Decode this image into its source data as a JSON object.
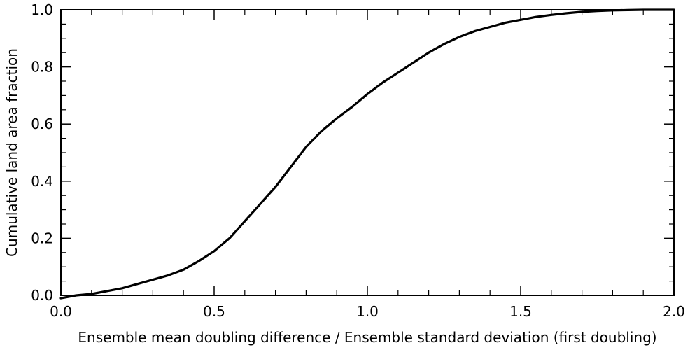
{
  "chart_data": {
    "type": "line",
    "title": "",
    "xlabel": "Ensemble mean doubling difference / Ensemble standard deviation (first doubling)",
    "ylabel": "Cumulative land area fraction",
    "xlim": [
      0.0,
      2.0
    ],
    "ylim": [
      0.0,
      1.0
    ],
    "grid": false,
    "x_ticks": [
      "0.0",
      "0.5",
      "1.0",
      "1.5",
      "2.0"
    ],
    "y_ticks": [
      "0.0",
      "0.2",
      "0.4",
      "0.6",
      "0.8",
      "1.0"
    ],
    "series": [
      {
        "x": [
          0.0,
          0.05,
          0.1,
          0.15,
          0.2,
          0.25,
          0.3,
          0.35,
          0.4,
          0.45,
          0.5,
          0.55,
          0.6,
          0.65,
          0.7,
          0.75,
          0.8,
          0.85,
          0.9,
          0.95,
          1.0,
          1.05,
          1.1,
          1.15,
          1.2,
          1.25,
          1.3,
          1.35,
          1.4,
          1.45,
          1.5,
          1.55,
          1.6,
          1.65,
          1.7,
          1.75,
          1.8,
          1.85,
          1.9,
          1.95,
          2.0
        ],
        "y": [
          -0.01,
          0.0,
          0.005,
          0.015,
          0.025,
          0.04,
          0.055,
          0.07,
          0.09,
          0.12,
          0.155,
          0.2,
          0.26,
          0.32,
          0.38,
          0.45,
          0.52,
          0.575,
          0.62,
          0.66,
          0.705,
          0.745,
          0.78,
          0.815,
          0.85,
          0.88,
          0.905,
          0.925,
          0.94,
          0.955,
          0.965,
          0.975,
          0.982,
          0.988,
          0.993,
          0.996,
          0.998,
          0.999,
          1.0,
          1.0,
          1.0
        ]
      }
    ]
  }
}
